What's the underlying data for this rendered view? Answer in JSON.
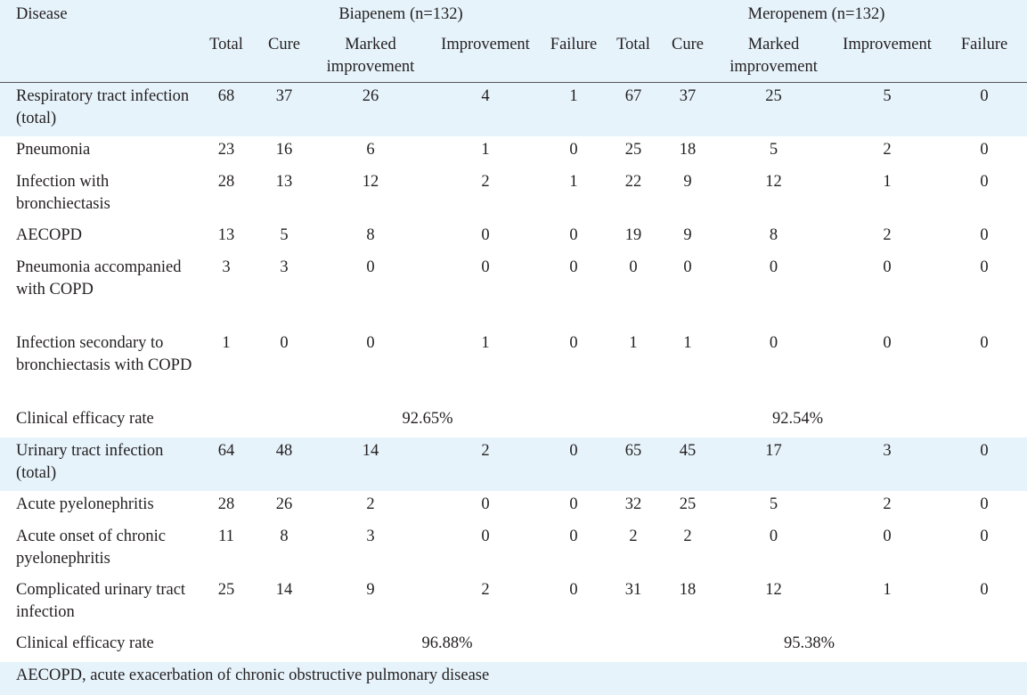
{
  "header": {
    "disease_label": "Disease",
    "groups": [
      {
        "label": "Biapenem (n=132)"
      },
      {
        "label": "Meropenem (n=132)"
      }
    ],
    "columns": [
      "Total",
      "Cure",
      "Marked improvement",
      "Improvement",
      "Failure"
    ]
  },
  "sections": [
    {
      "rows": [
        {
          "disease": "Respiratory tract infection (total)",
          "b": [
            "68",
            "37",
            "26",
            "4",
            "1"
          ],
          "m": [
            "67",
            "37",
            "25",
            "5",
            "0"
          ]
        },
        {
          "disease": "Pneumonia",
          "b": [
            "23",
            "16",
            "6",
            "1",
            "0"
          ],
          "m": [
            "25",
            "18",
            "5",
            "2",
            "0"
          ]
        },
        {
          "disease": "Infection with bronchiectasis",
          "b": [
            "28",
            "13",
            "12",
            "2",
            "1"
          ],
          "m": [
            "22",
            "9",
            "12",
            "1",
            "0"
          ]
        },
        {
          "disease": "AECOPD",
          "b": [
            "13",
            "5",
            "8",
            "0",
            "0"
          ],
          "m": [
            "19",
            "9",
            "8",
            "2",
            "0"
          ]
        },
        {
          "disease": "Pneumonia accompanied with COPD",
          "b": [
            "3",
            "3",
            "0",
            "0",
            "0"
          ],
          "m": [
            "0",
            "0",
            "0",
            "0",
            "0"
          ]
        },
        {
          "disease": "Infection secondary to bronchiectasis with COPD",
          "b": [
            "1",
            "0",
            "0",
            "1",
            "0"
          ],
          "m": [
            "1",
            "1",
            "0",
            "0",
            "0"
          ]
        }
      ],
      "efficacy": {
        "label": "Clinical efficacy rate",
        "b": "92.65%",
        "m": "92.54%"
      }
    },
    {
      "rows": [
        {
          "disease": "Urinary tract infection (total)",
          "b": [
            "64",
            "48",
            "14",
            "2",
            "0"
          ],
          "m": [
            "65",
            "45",
            "17",
            "3",
            "0"
          ]
        },
        {
          "disease": "Acute pyelonephritis",
          "b": [
            "28",
            "26",
            "2",
            "0",
            "0"
          ],
          "m": [
            "32",
            "25",
            "5",
            "2",
            "0"
          ]
        },
        {
          "disease": "Acute onset of chronic pyelonephritis",
          "b": [
            "11",
            "8",
            "3",
            "0",
            "0"
          ],
          "m": [
            "2",
            "2",
            "0",
            "0",
            "0"
          ]
        },
        {
          "disease": "Complicated urinary tract infection",
          "b": [
            "25",
            "14",
            "9",
            "2",
            "0"
          ],
          "m": [
            "31",
            "18",
            "12",
            "1",
            "0"
          ]
        }
      ],
      "efficacy": {
        "label": "Clinical efficacy rate",
        "b": "96.88%",
        "m": "95.38%"
      }
    }
  ],
  "footnote": "AECOPD, acute exacerbation of chronic obstructive pulmonary disease"
}
